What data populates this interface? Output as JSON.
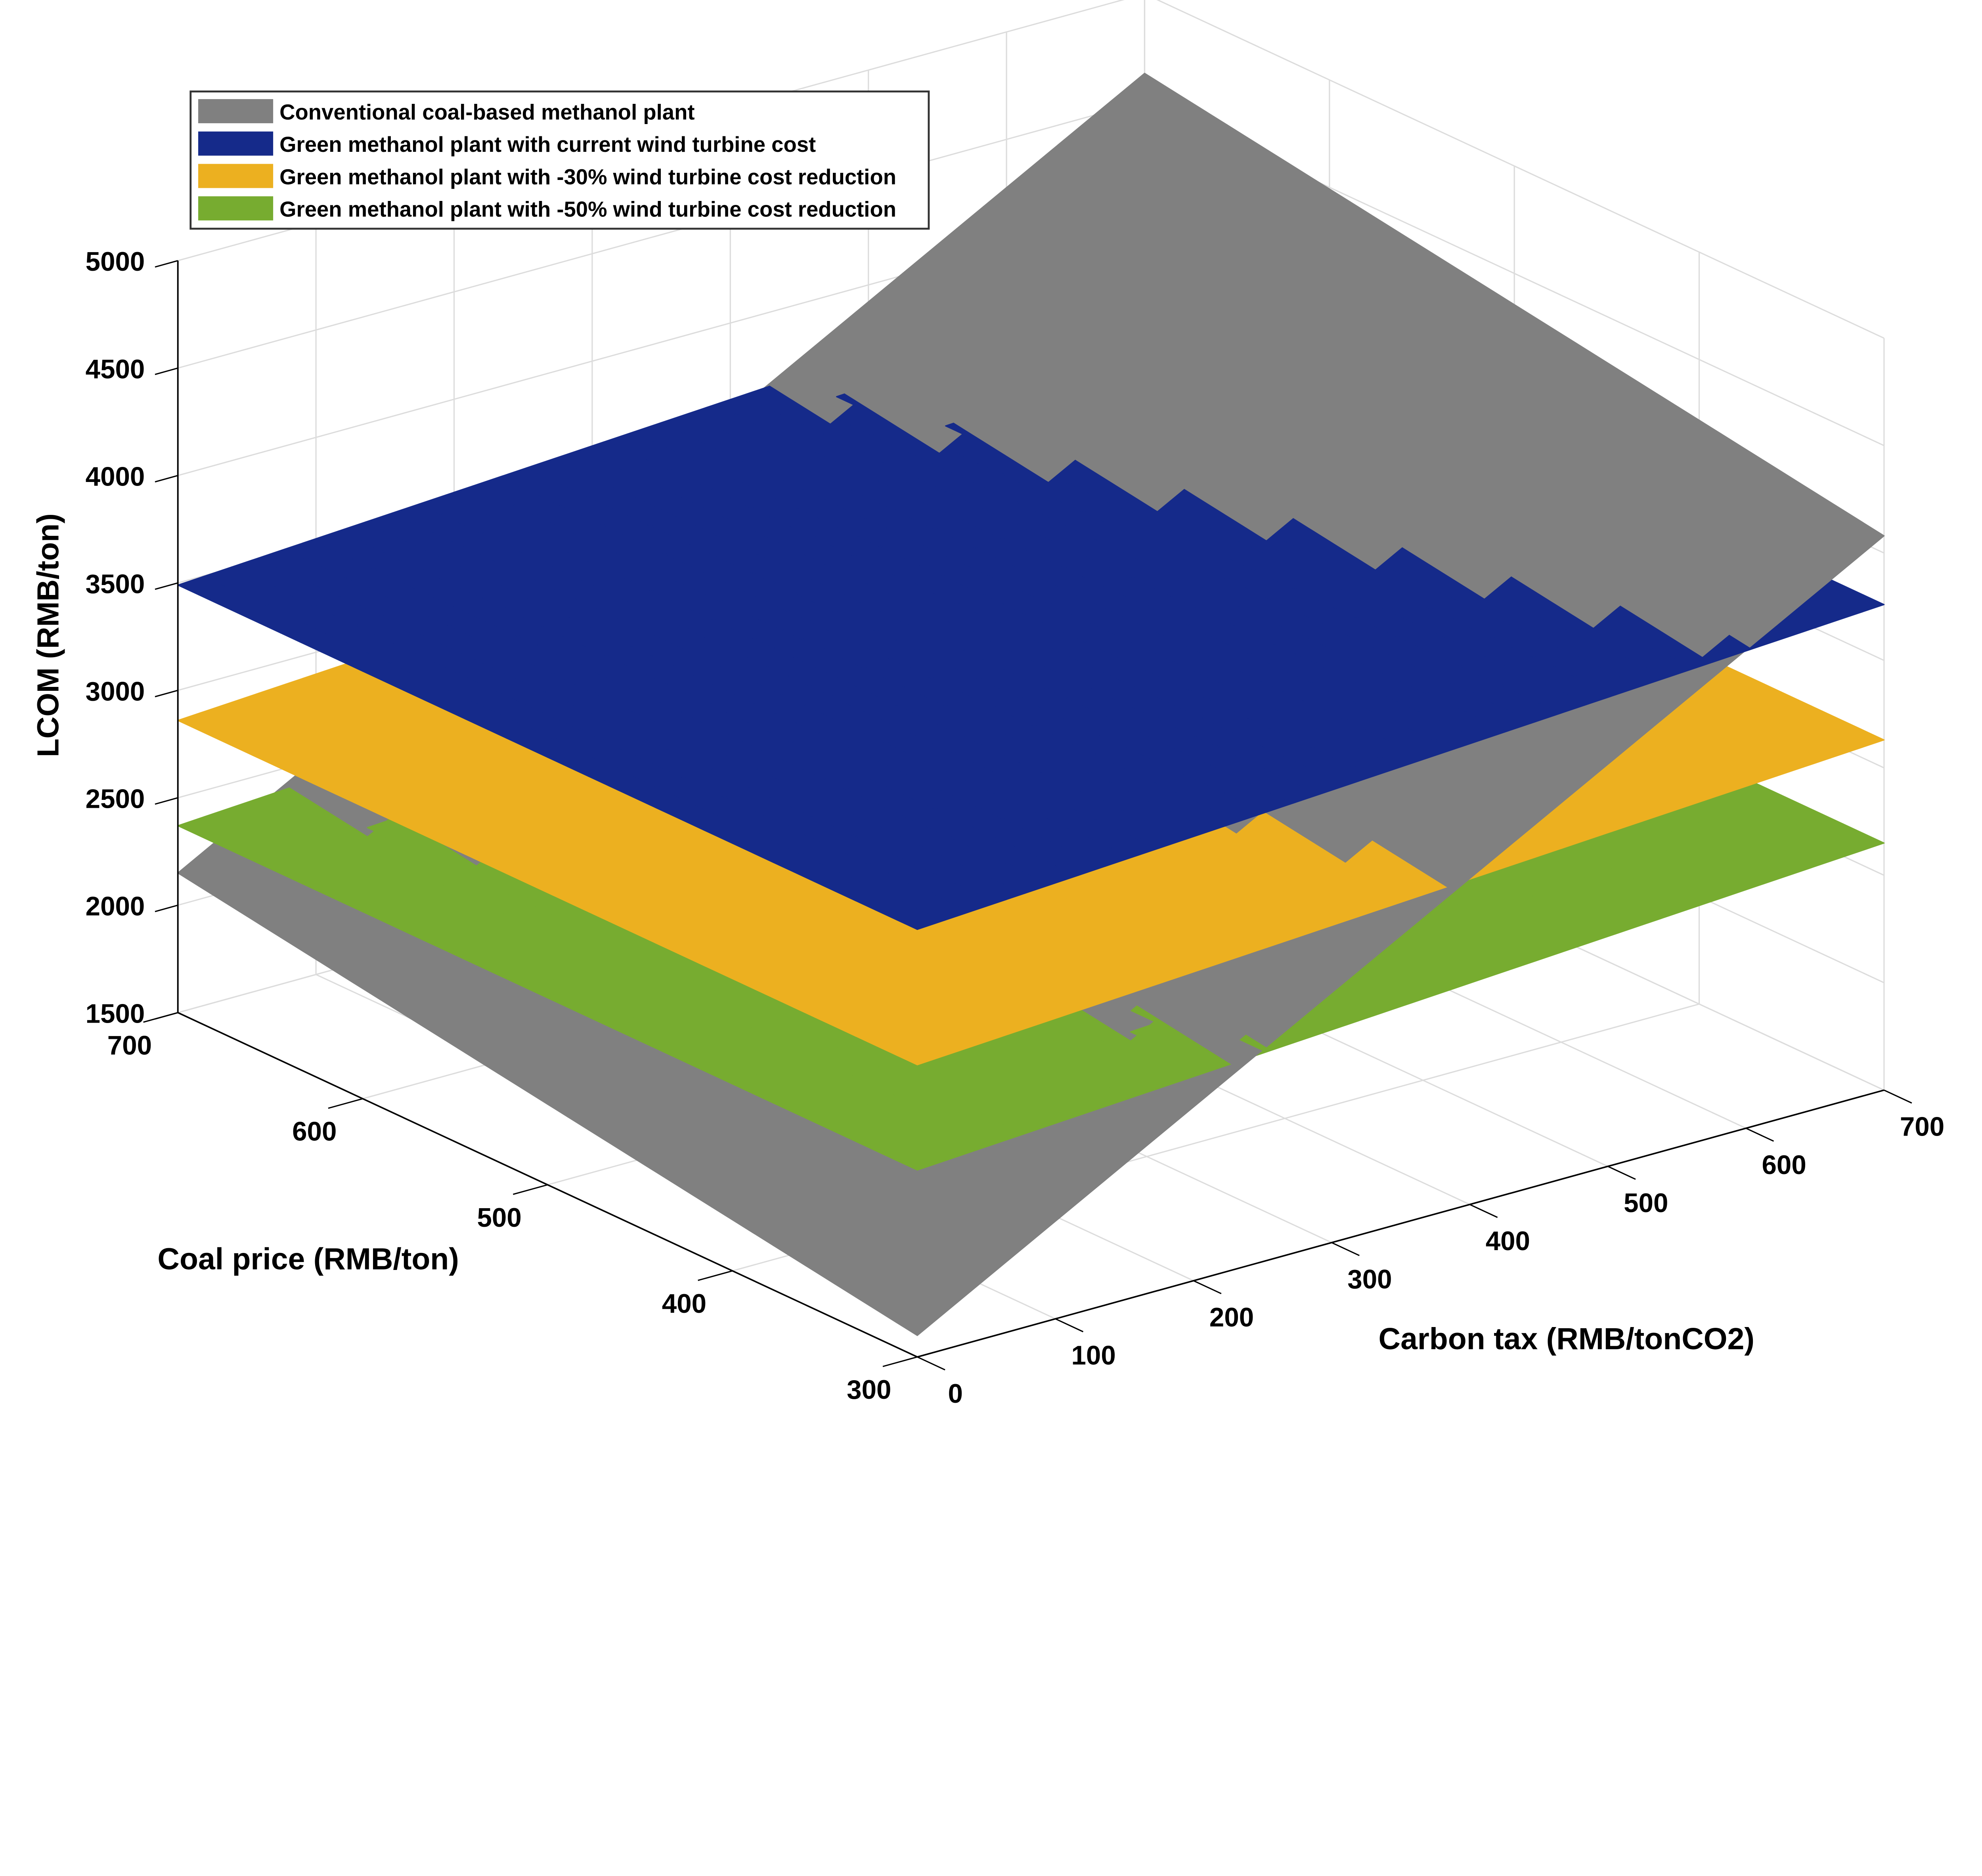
{
  "chart_data": {
    "type": "surface",
    "title": "",
    "xlabel": "Carbon tax (RMB/tonCO2)",
    "ylabel": "Coal price (RMB/ton)",
    "zlabel": "LCOM (RMB/ton)",
    "xlim": [
      0,
      700
    ],
    "ylim": [
      300,
      700
    ],
    "zlim": [
      1500,
      5000
    ],
    "x_ticks": [
      "0",
      "100",
      "200",
      "300",
      "400",
      "500",
      "600",
      "700"
    ],
    "y_ticks": [
      "300",
      "400",
      "500",
      "600",
      "700"
    ],
    "z_ticks": [
      "1500",
      "2000",
      "2500",
      "3000",
      "3500",
      "4000",
      "4500",
      "5000"
    ],
    "grid": true,
    "legend_position": "top-left",
    "x": [
      0,
      700
    ],
    "y": [
      300,
      700
    ],
    "series": [
      {
        "name": "Conventional coal-based methanol plant",
        "color": "#808080",
        "z": [
          [
            1600,
            4080
          ],
          [
            2150,
            4630
          ]
        ]
      },
      {
        "name": "Green methanol plant with current wind turbine cost",
        "color": "#152A8A",
        "z": [
          [
            3490,
            3760
          ],
          [
            3490,
            3760
          ]
        ]
      },
      {
        "name": "Green methanol plant with -30% wind turbine cost reduction",
        "color": "#ECB020",
        "z": [
          [
            2860,
            3130
          ],
          [
            2860,
            3130
          ]
        ]
      },
      {
        "name": "Green methanol plant with -50% wind turbine cost reduction",
        "color": "#77AC30",
        "z": [
          [
            2370,
            2650
          ],
          [
            2370,
            2650
          ]
        ]
      }
    ]
  }
}
